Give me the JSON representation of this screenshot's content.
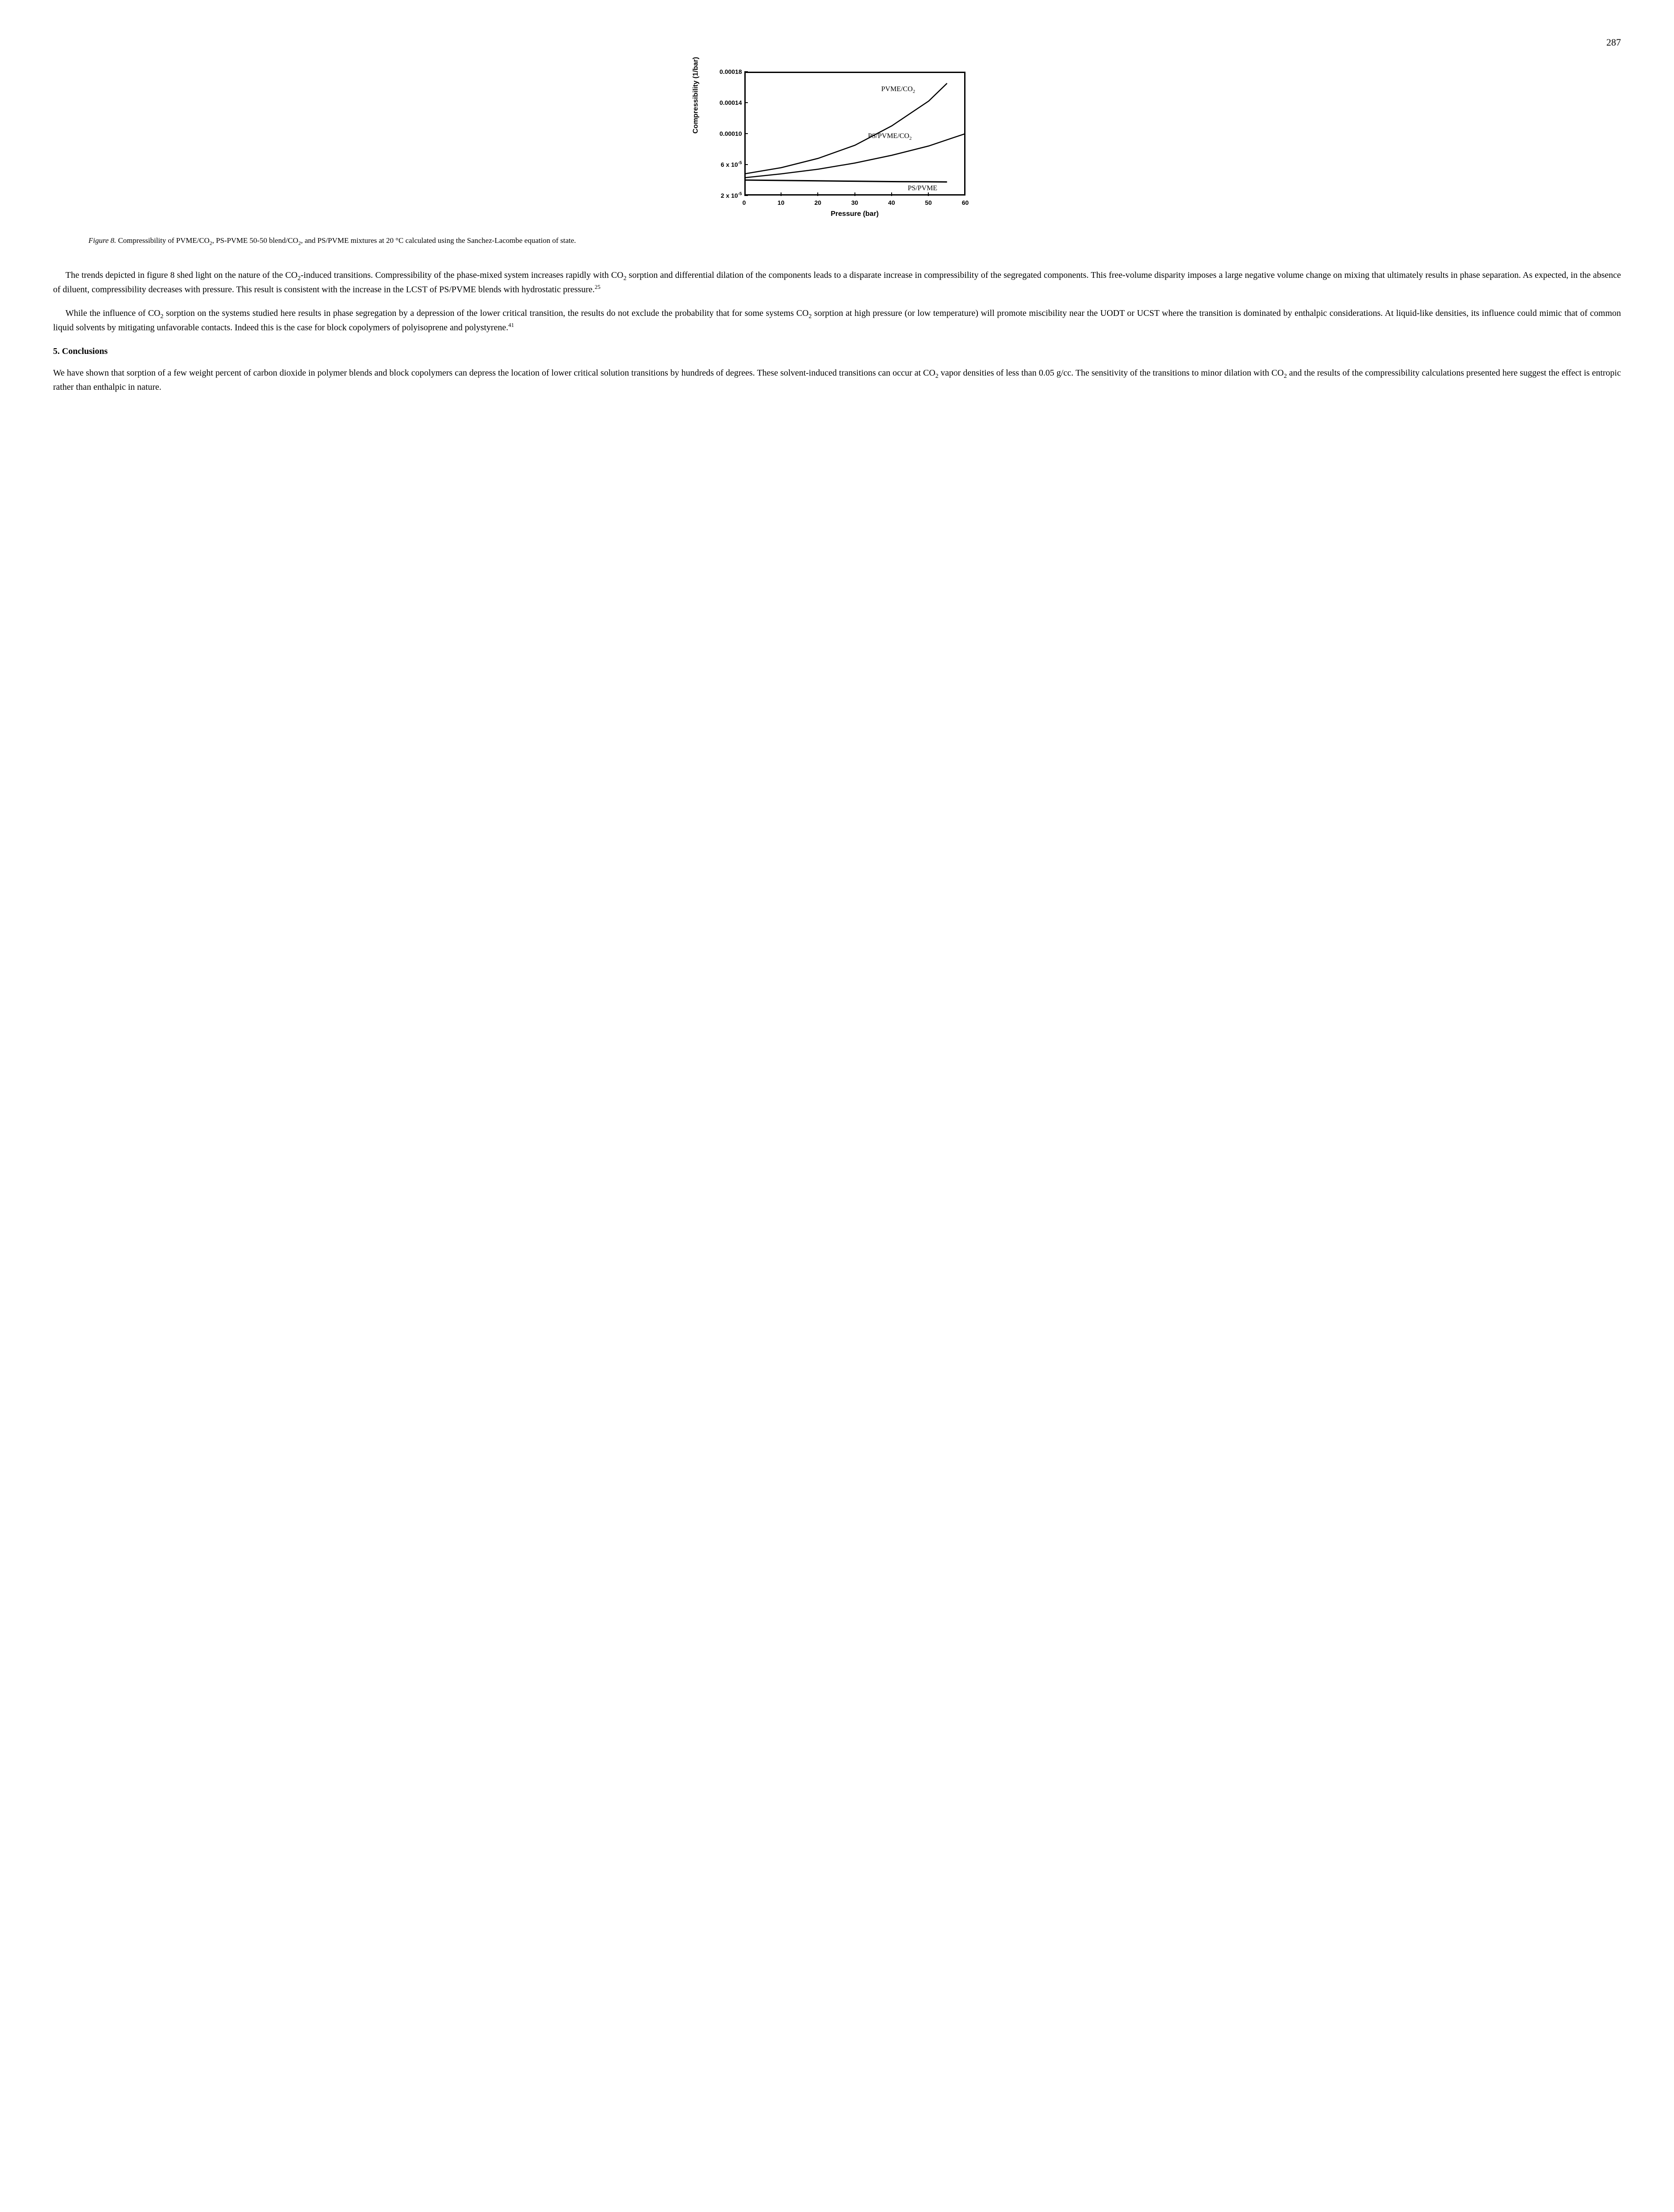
{
  "page_number": "287",
  "chart": {
    "type": "line",
    "ylabel": "Compressibility (1/bar)",
    "xlabel": "Pressure (bar)",
    "xlim": [
      0,
      60
    ],
    "ylim": [
      2e-05,
      0.00018
    ],
    "xticks": [
      {
        "v": 0,
        "label": "0"
      },
      {
        "v": 10,
        "label": "10"
      },
      {
        "v": 20,
        "label": "20"
      },
      {
        "v": 30,
        "label": "30"
      },
      {
        "v": 40,
        "label": "40"
      },
      {
        "v": 50,
        "label": "50"
      },
      {
        "v": 60,
        "label": "60"
      }
    ],
    "yticks": [
      {
        "v": 2e-05,
        "label_html": "2 x 10<sup>-5</sup>"
      },
      {
        "v": 6e-05,
        "label_html": "6 x 10<sup>-5</sup>"
      },
      {
        "v": 0.0001,
        "label_html": "0.00010"
      },
      {
        "v": 0.00014,
        "label_html": "0.00014"
      },
      {
        "v": 0.00018,
        "label_html": "0.00018"
      }
    ],
    "series": [
      {
        "name": "PVME/CO2",
        "label_html": "PVME/CO<sub>2</sub>",
        "label_pos": {
          "x_frac": 0.62,
          "y_frac": 0.1
        },
        "color": "#000000",
        "line_width": 2.5,
        "points": [
          {
            "x": 0,
            "y": 4.8e-05
          },
          {
            "x": 10,
            "y": 5.6e-05
          },
          {
            "x": 20,
            "y": 6.8e-05
          },
          {
            "x": 30,
            "y": 8.5e-05
          },
          {
            "x": 40,
            "y": 0.00011
          },
          {
            "x": 50,
            "y": 0.000142
          },
          {
            "x": 55,
            "y": 0.000165
          }
        ]
      },
      {
        "name": "PS/PVME/CO2",
        "label_html": "PS/PVME/CO<sub>2</sub>",
        "label_pos": {
          "x_frac": 0.56,
          "y_frac": 0.48
        },
        "color": "#000000",
        "line_width": 2.5,
        "points": [
          {
            "x": 0,
            "y": 4.3e-05
          },
          {
            "x": 10,
            "y": 4.8e-05
          },
          {
            "x": 20,
            "y": 5.4e-05
          },
          {
            "x": 30,
            "y": 6.2e-05
          },
          {
            "x": 40,
            "y": 7.2e-05
          },
          {
            "x": 50,
            "y": 8.4e-05
          },
          {
            "x": 60,
            "y": 0.0001
          }
        ]
      },
      {
        "name": "PS/PVME",
        "label_html": "PS/PVME",
        "label_pos": {
          "x_frac": 0.74,
          "y_frac": 0.9
        },
        "color": "#000000",
        "line_width": 3.0,
        "points": [
          {
            "x": 0,
            "y": 4e-05
          },
          {
            "x": 10,
            "y": 3.95e-05
          },
          {
            "x": 20,
            "y": 3.9e-05
          },
          {
            "x": 30,
            "y": 3.85e-05
          },
          {
            "x": 40,
            "y": 3.8e-05
          },
          {
            "x": 50,
            "y": 3.78e-05
          },
          {
            "x": 55,
            "y": 3.76e-05
          }
        ]
      }
    ],
    "background_color": "#ffffff",
    "axis_color": "#000000",
    "tick_fontsize": 14,
    "label_fontsize": 16
  },
  "caption": {
    "lead": "Figure 8.",
    "body_html": "Compressibility of PVME/CO<sub>2</sub>, PS-PVME 50-50 blend/CO<sub>2</sub>, and PS/PVME mixtures at 20 °C calculated using the Sanchez-Lacombe equation of state."
  },
  "paragraphs": {
    "p1_html": "The trends depicted in figure 8 shed light on the nature of the CO<sub>2</sub>-induced transitions. Compressibility of the phase-mixed system increases rapidly with CO<sub>2</sub> sorption and differential dilation of the components leads to a disparate increase in compressibility of the segregated components.  This free-volume disparity imposes a large negative volume change on mixing that ultimately results in phase separation. As expected, in the absence of diluent, compressibility decreases with pressure.  This result is consistent with the increase in the LCST of PS/PVME blends with hydrostatic pressure.<sup>25</sup>",
    "p2_html": "While the influence of CO<sub>2</sub> sorption on the systems studied here results in phase segregation by a depression of the lower critical transition, the results do not exclude the probability that for some systems CO<sub>2</sub> sorption at high pressure (or low temperature) will promote miscibility near the UODT or UCST where the transition is dominated by enthalpic considerations.  At liquid-like densities, its influence could mimic that of common liquid solvents by mitigating unfavorable contacts.  Indeed this is the case for block copolymers of polyisoprene and polystyrene.<sup>41</sup>"
  },
  "section_heading": "5.  Conclusions",
  "conclusion_html": "We have shown that sorption of a few weight percent of carbon dioxide in polymer blends and block copolymers can depress the location of lower critical solution transitions by hundreds of degrees.  These solvent-induced transitions can occur at CO<sub>2</sub> vapor densities of less than 0.05 g/cc. The sensitivity of the transitions to minor dilation with CO<sub>2</sub> and the results of the compressibility calculations presented here suggest the effect is entropic rather than enthalpic in nature."
}
